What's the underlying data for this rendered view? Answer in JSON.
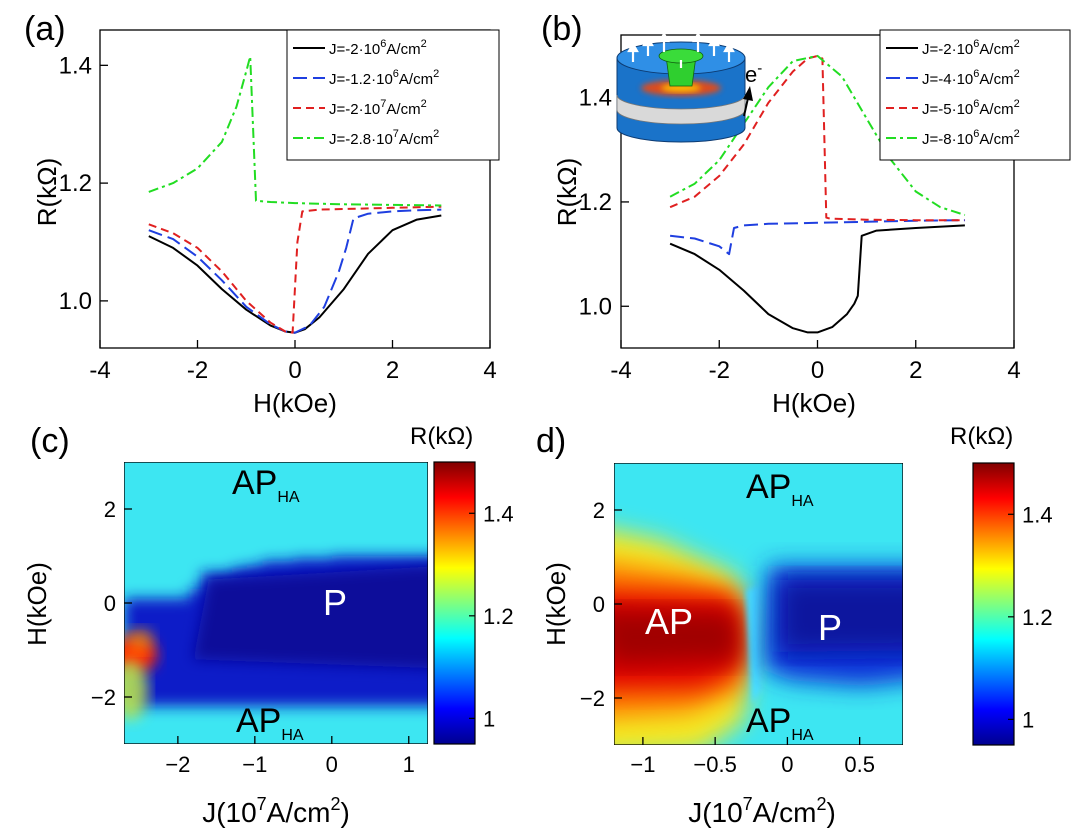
{
  "figure": {
    "panel_a": {
      "panel_label": "(a)",
      "xlabel": "H(kOe)",
      "ylabel": "R(kΩ)"
    },
    "panel_b": {
      "panel_label": "(b)",
      "xlabel": "H(kOe)",
      "ylabel": "R(kΩ)",
      "inset_label_base": "e",
      "inset_label_sup": "-"
    },
    "panel_c": {
      "panel_label": "(c)",
      "xlabel_pre": "J(10",
      "xlabel_sup": "7",
      "xlabel_post": "A/cm",
      "xlabel_sup2": "2",
      "xlabel_close": ")",
      "ylabel": "H(kOe)",
      "colorbar_title": "R(kΩ)",
      "region_labels": {
        "top_base": "AP",
        "top_sub": "HA",
        "middle": "P",
        "bottom_base": "AP",
        "bottom_sub": "HA"
      }
    },
    "panel_d": {
      "panel_label": "d)",
      "xlabel_pre": "J(10",
      "xlabel_sup": "7",
      "xlabel_post": "A/cm",
      "xlabel_sup2": "2",
      "xlabel_close": ")",
      "ylabel": "H(kOe)",
      "colorbar_title": "R(kΩ)",
      "region_labels": {
        "top_base": "AP",
        "top_sub": "HA",
        "left": "AP",
        "right": "P",
        "bottom_base": "AP",
        "bottom_sub": "HA"
      }
    }
  },
  "chart_data": [
    {
      "panel": "a",
      "type": "line",
      "xlim": [
        -4,
        4
      ],
      "ylim": [
        0.92,
        1.46
      ],
      "x_ticks": [
        -4,
        -2,
        0,
        2,
        4
      ],
      "x_tick_labels": [
        "-4",
        "-2",
        "0",
        "2",
        "4"
      ],
      "y_ticks": [
        1.0,
        1.2,
        1.4
      ],
      "y_tick_labels": [
        "1.0",
        "1.2",
        "1.4"
      ],
      "grid": false,
      "legend_position": "top-right",
      "series": [
        {
          "name": "J=-2·10^6A/cm^2",
          "legend": {
            "a": "J=-2·10",
            "b": "6",
            "c": "A/cm",
            "d": "2"
          },
          "color": "#000000",
          "dash": "solid",
          "x": [
            -3,
            -2.5,
            -2,
            -1.5,
            -1,
            -0.5,
            -0.2,
            0,
            0.2,
            0.5,
            1,
            1.5,
            2,
            2.5,
            3
          ],
          "y": [
            1.11,
            1.09,
            1.06,
            1.02,
            0.985,
            0.958,
            0.948,
            0.946,
            0.952,
            0.972,
            1.02,
            1.08,
            1.12,
            1.138,
            1.145
          ]
        },
        {
          "name": "J=-1.2·10^6A/cm^2",
          "legend": {
            "a": "J=-1.2·10",
            "b": "6",
            "c": "A/cm",
            "d": "2"
          },
          "color": "#1f3fe0",
          "dash": "long",
          "x": [
            -3,
            -2.5,
            -2,
            -1.5,
            -1,
            -0.5,
            -0.2,
            0,
            0.3,
            0.6,
            0.9,
            1.05,
            1.2,
            1.5,
            2,
            2.5,
            3
          ],
          "y": [
            1.12,
            1.105,
            1.075,
            1.035,
            0.99,
            0.96,
            0.948,
            0.946,
            0.958,
            0.99,
            1.05,
            1.09,
            1.14,
            1.148,
            1.152,
            1.154,
            1.155
          ]
        },
        {
          "name": "J=-2·10^7A/cm^2",
          "legend": {
            "a": "J=-2·10",
            "b": "7",
            "c": "A/cm",
            "d": "2"
          },
          "color": "#e02020",
          "dash": "short",
          "x": [
            -3,
            -2.5,
            -2,
            -1.5,
            -1,
            -0.5,
            -0.2,
            -0.05,
            0.05,
            0.15,
            0.5,
            1,
            2,
            3
          ],
          "y": [
            1.13,
            1.115,
            1.09,
            1.05,
            1.0,
            0.963,
            0.948,
            0.946,
            1.1,
            1.152,
            1.155,
            1.156,
            1.158,
            1.16
          ]
        },
        {
          "name": "J=-2.8·10^7A/cm^2",
          "legend": {
            "a": "J=-2.8·10",
            "b": "7",
            "c": "A/cm",
            "d": "2"
          },
          "color": "#22dd22",
          "dash": "dashdot",
          "x": [
            -3,
            -2.5,
            -2,
            -1.5,
            -1.2,
            -1.0,
            -0.92,
            -0.8,
            -0.5,
            0,
            1,
            2,
            3
          ],
          "y": [
            1.185,
            1.2,
            1.225,
            1.27,
            1.33,
            1.39,
            1.415,
            1.17,
            1.168,
            1.166,
            1.164,
            1.163,
            1.162
          ]
        }
      ]
    },
    {
      "panel": "b",
      "type": "line",
      "xlim": [
        -4,
        4
      ],
      "ylim": [
        0.92,
        1.52
      ],
      "x_ticks": [
        -4,
        -2,
        0,
        2,
        4
      ],
      "x_tick_labels": [
        "-4",
        "-2",
        "0",
        "2",
        "4"
      ],
      "y_ticks": [
        1.0,
        1.2,
        1.4
      ],
      "y_tick_labels": [
        "1.0",
        "1.2",
        "1.4"
      ],
      "grid": false,
      "legend_position": "top-right",
      "series": [
        {
          "name": "J=-2·10^6A/cm^2",
          "legend": {
            "a": "J=-2·10",
            "b": "6",
            "c": "A/cm",
            "d": "2"
          },
          "color": "#000000",
          "dash": "solid",
          "x": [
            -3,
            -2.5,
            -2,
            -1.5,
            -1,
            -0.5,
            -0.2,
            0,
            0.3,
            0.6,
            0.75,
            0.82,
            0.9,
            1.2,
            2,
            3
          ],
          "y": [
            1.12,
            1.1,
            1.07,
            1.03,
            0.985,
            0.958,
            0.95,
            0.95,
            0.96,
            0.985,
            1.005,
            1.02,
            1.135,
            1.145,
            1.15,
            1.155
          ]
        },
        {
          "name": "J=-4·10^6A/cm^2",
          "legend": {
            "a": "J=-4·10",
            "b": "6",
            "c": "A/cm",
            "d": "2"
          },
          "color": "#1f3fe0",
          "dash": "long",
          "x": [
            -3,
            -2.5,
            -2,
            -1.8,
            -1.7,
            -1.5,
            -1,
            0,
            1,
            2,
            3
          ],
          "y": [
            1.135,
            1.13,
            1.115,
            1.1,
            1.15,
            1.155,
            1.158,
            1.16,
            1.162,
            1.164,
            1.165
          ]
        },
        {
          "name": "J=-5·10^6A/cm^2",
          "legend": {
            "a": "J=-5·10",
            "b": "6",
            "c": "A/cm",
            "d": "2"
          },
          "color": "#e02020",
          "dash": "short",
          "x": [
            -3,
            -2.5,
            -2,
            -1.5,
            -1,
            -0.5,
            -0.2,
            0,
            0.1,
            0.18,
            0.25,
            1,
            2,
            3
          ],
          "y": [
            1.19,
            1.21,
            1.25,
            1.31,
            1.39,
            1.45,
            1.475,
            1.48,
            1.475,
            1.17,
            1.168,
            1.166,
            1.165,
            1.165
          ]
        },
        {
          "name": "J=-8·10^6A/cm^2",
          "legend": {
            "a": "J=-8·10",
            "b": "6",
            "c": "A/cm",
            "d": "2"
          },
          "color": "#22dd22",
          "dash": "dashdot",
          "x": [
            -3,
            -2.5,
            -2,
            -1.5,
            -1,
            -0.5,
            0,
            0.5,
            1,
            1.5,
            2,
            2.5,
            3
          ],
          "y": [
            1.21,
            1.235,
            1.28,
            1.35,
            1.42,
            1.47,
            1.48,
            1.44,
            1.36,
            1.28,
            1.22,
            1.19,
            1.175
          ]
        }
      ]
    },
    {
      "panel": "c",
      "type": "heatmap",
      "xlim": [
        -2.7,
        1.25
      ],
      "ylim": [
        -3,
        3
      ],
      "x_ticks": [
        -2,
        -1,
        0,
        1
      ],
      "x_tick_labels": [
        "−2",
        "−1",
        "0",
        "1"
      ],
      "y_ticks": [
        -2,
        0,
        2
      ],
      "y_tick_labels": [
        "−2",
        "0",
        "2"
      ],
      "colorbar": {
        "range": [
          0.95,
          1.5
        ],
        "ticks": [
          1.0,
          1.2,
          1.4
        ],
        "tick_labels": [
          "1",
          "1.2",
          "1.4"
        ]
      },
      "values_description_free": true,
      "P_region_upper_boundary": {
        "J": [
          -2.7,
          -2.3,
          -2.0,
          -1.85,
          -1.7,
          -1.5,
          -1.3,
          -1.1,
          -0.9,
          -0.5,
          0,
          1.25
        ],
        "H": [
          0.1,
          0.1,
          0.1,
          0.3,
          0.65,
          0.65,
          0.75,
          0.8,
          0.9,
          0.95,
          1.0,
          1.0
        ]
      },
      "P_region_lower_boundary_H": -2.2,
      "hotspot": {
        "J": -2.55,
        "H": -1.0,
        "R": 1.38
      }
    },
    {
      "panel": "d",
      "type": "heatmap",
      "xlim": [
        -1.2,
        0.8
      ],
      "ylim": [
        -3,
        3
      ],
      "x_ticks": [
        -1,
        -0.5,
        0,
        0.5
      ],
      "x_tick_labels": [
        "−1",
        "−0.5",
        "0",
        "0.5"
      ],
      "y_ticks": [
        -2,
        0,
        2
      ],
      "y_tick_labels": [
        "−2",
        "0",
        "2"
      ],
      "colorbar": {
        "range": [
          0.95,
          1.5
        ],
        "ticks": [
          1.0,
          1.2,
          1.4
        ],
        "tick_labels": [
          "1",
          "1.2",
          "1.4"
        ]
      },
      "AP_region": {
        "J": [
          -1.2,
          -0.4
        ],
        "H": [
          -1.8,
          0.8
        ],
        "R_peak": 1.48
      },
      "P_region": {
        "J": [
          -0.3,
          0.8
        ],
        "H_upper": 0.8,
        "H_lower": -1.5
      },
      "switching_J": -0.38
    }
  ]
}
